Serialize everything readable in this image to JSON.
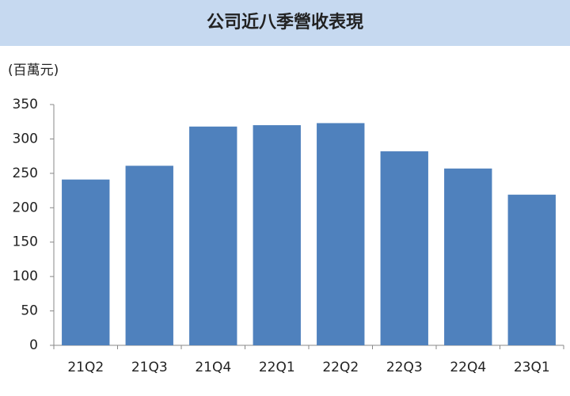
{
  "chart_data": {
    "type": "bar",
    "title": "公司近八季營收表現",
    "y_axis_label": "(百萬元)",
    "categories": [
      "21Q2",
      "21Q3",
      "21Q4",
      "22Q1",
      "22Q2",
      "22Q3",
      "22Q4",
      "23Q1"
    ],
    "values": [
      241,
      261,
      318,
      320,
      323,
      282,
      257,
      219
    ],
    "color": "#4f81bd",
    "ylim": [
      0,
      350
    ],
    "yticks": [
      0,
      50,
      100,
      150,
      200,
      250,
      300,
      350
    ],
    "grid": false
  }
}
